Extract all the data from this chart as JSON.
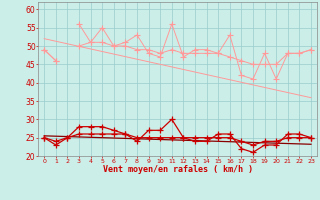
{
  "x": [
    0,
    1,
    2,
    3,
    4,
    5,
    6,
    7,
    8,
    9,
    10,
    11,
    12,
    13,
    14,
    15,
    16,
    17,
    18,
    19,
    20,
    21,
    22,
    23
  ],
  "gust_spiky": [
    49,
    46,
    null,
    56,
    51,
    55,
    50,
    51,
    53,
    48,
    47,
    56,
    47,
    49,
    49,
    48,
    53,
    42,
    41,
    48,
    41,
    48,
    48,
    49
  ],
  "gust_smooth": [
    49,
    46,
    null,
    50,
    51,
    51,
    50,
    50,
    49,
    49,
    48,
    49,
    48,
    48,
    48,
    48,
    47,
    46,
    45,
    45,
    45,
    48,
    48,
    49
  ],
  "gust_trend": [
    52.0,
    51.3,
    50.6,
    49.9,
    49.2,
    48.5,
    47.8,
    47.1,
    46.4,
    45.7,
    45.0,
    44.3,
    43.6,
    42.9,
    42.2,
    41.5,
    40.8,
    40.1,
    39.4,
    38.7,
    38.0,
    37.3,
    36.6,
    35.9
  ],
  "avg_spiky": [
    25,
    23,
    25,
    28,
    28,
    28,
    27,
    26,
    24,
    27,
    27,
    30,
    25,
    24,
    24,
    26,
    26,
    22,
    21,
    23,
    23,
    26,
    26,
    25
  ],
  "avg_smooth": [
    25,
    24,
    25,
    26,
    26,
    26,
    26,
    26,
    25,
    25,
    25,
    25,
    25,
    25,
    25,
    25,
    25,
    24,
    23,
    24,
    24,
    25,
    25,
    25
  ],
  "avg_trend": [
    25.5,
    25.4,
    25.3,
    25.2,
    25.1,
    25.0,
    24.9,
    24.8,
    24.7,
    24.6,
    24.5,
    24.4,
    24.3,
    24.2,
    24.1,
    24.0,
    23.9,
    23.8,
    23.7,
    23.6,
    23.5,
    23.4,
    23.3,
    23.2
  ],
  "background_color": "#cceee8",
  "grid_color": "#99cccc",
  "xlabel": "Vent moyen/en rafales ( km/h )",
  "xlabel_color": "#cc0000",
  "tick_color": "#cc0000",
  "ylim": [
    20,
    62
  ],
  "yticks": [
    20,
    25,
    30,
    35,
    40,
    45,
    50,
    55,
    60
  ],
  "line_color_light": "#ff9999",
  "line_color_dark": "#cc0000",
  "line_color_dark2": "#880000"
}
